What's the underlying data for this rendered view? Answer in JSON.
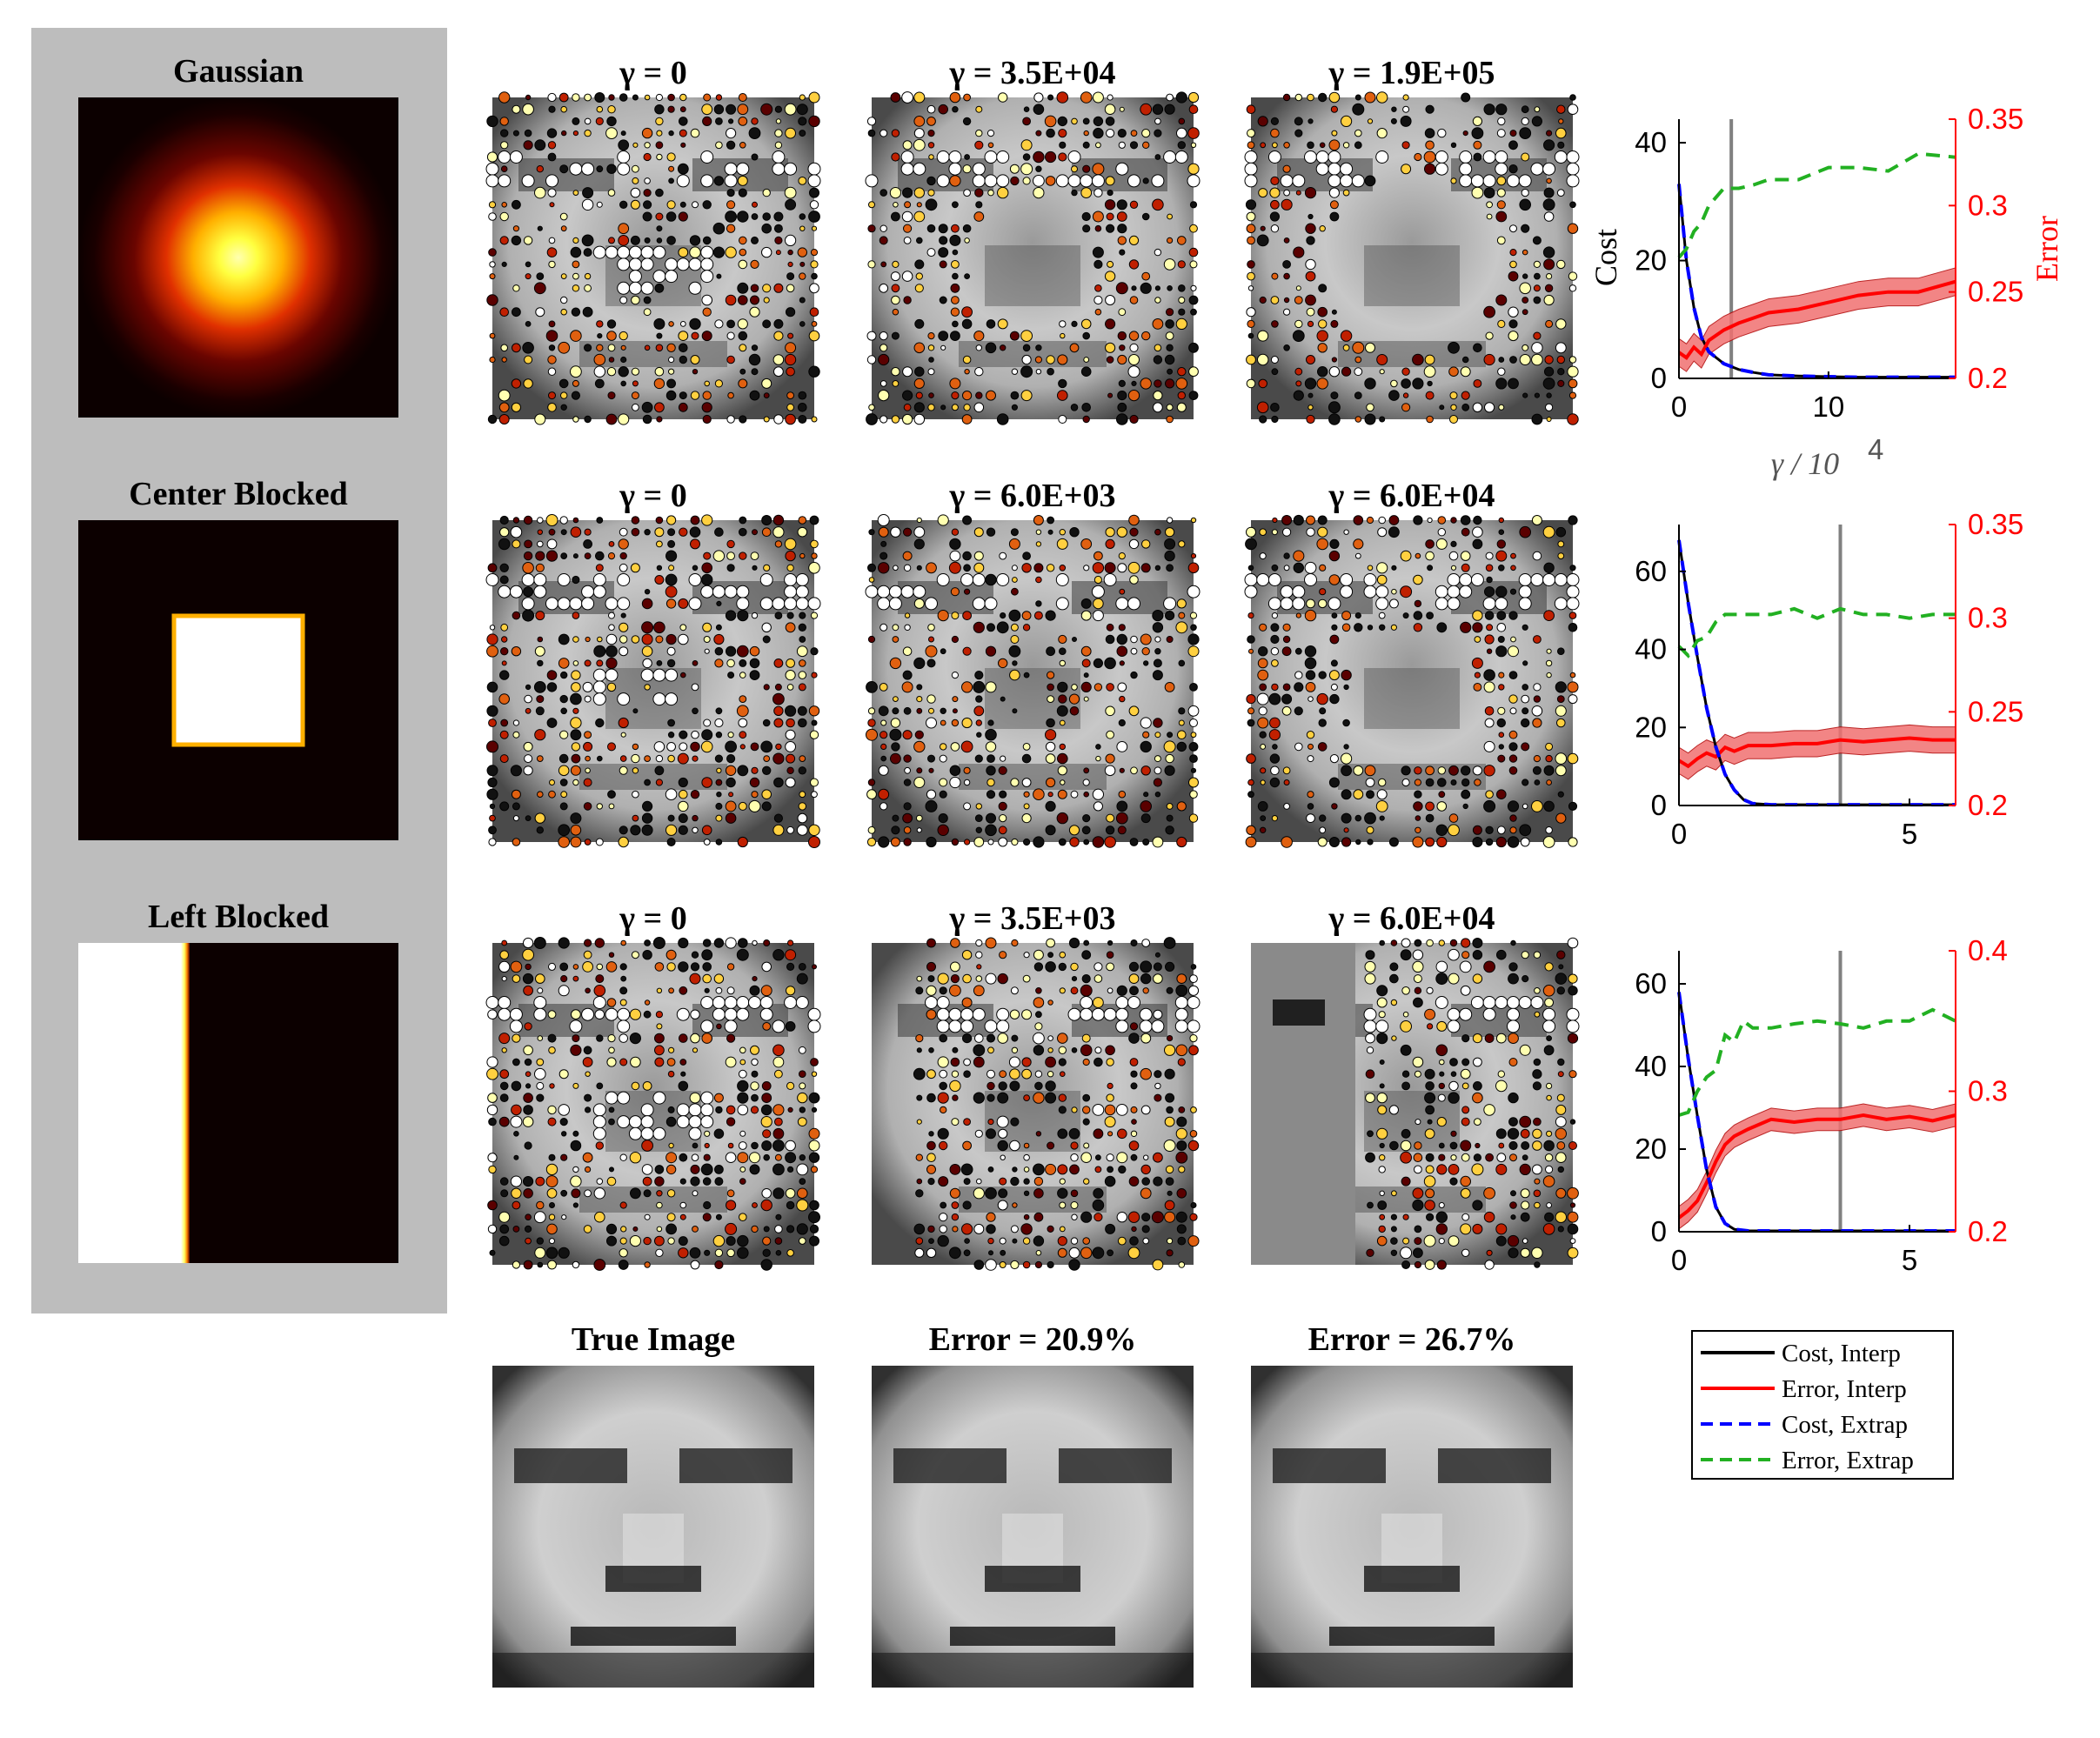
{
  "figure": {
    "masks": {
      "titles": [
        "Gaussian",
        "Center Blocked",
        "Left Blocked"
      ],
      "types": [
        "gaussian",
        "center",
        "left"
      ],
      "panel_background": "#bdbdbd"
    },
    "rows": [
      {
        "type": "gaussian",
        "titles": [
          "γ = 0",
          "γ = 3.5E+04",
          "γ = 1.9E+05"
        ]
      },
      {
        "type": "center",
        "titles": [
          "γ = 0",
          "γ = 6.0E+03",
          "γ = 6.0E+04"
        ]
      },
      {
        "type": "left",
        "titles": [
          "γ = 0",
          "γ = 3.5E+03",
          "γ = 6.0E+04"
        ]
      }
    ],
    "bottom_titles": [
      "True Image",
      "Error = 20.9%",
      "Error = 26.7%"
    ],
    "legend": [
      "Cost, Interp",
      "Error, Interp",
      "Cost, Extrap",
      "Error, Extrap"
    ],
    "colors": {
      "cost_interp": "#000000",
      "error_interp": "#ff0000",
      "cost_extrap": "#0000ff",
      "error_extrap": "#22b022",
      "vline": "#808080",
      "error_axis": "#ff0000"
    },
    "axis_labels": {
      "left": "Cost",
      "right": "Error",
      "x": "γ / 10",
      "x_exp": "4"
    }
  },
  "chart_data": [
    {
      "type": "line",
      "xlim": [
        0,
        18.5
      ],
      "xticks": [
        0,
        10
      ],
      "ylim_left": [
        0,
        44
      ],
      "yticks_left": [
        0,
        20,
        40
      ],
      "ylim_right": [
        0.2,
        0.35
      ],
      "yticks_right": [
        "0.2",
        "0.25",
        "0.3",
        "0.35"
      ],
      "vline_x": 3.5,
      "series": [
        {
          "name": "Cost, Interp",
          "axis": "left",
          "x": [
            0,
            0.5,
            1,
            1.5,
            2,
            3,
            4,
            5,
            6,
            8,
            10,
            12,
            14,
            16,
            18.5
          ],
          "y": [
            33,
            20,
            12,
            7,
            4.5,
            2.5,
            1.5,
            1,
            0.6,
            0.4,
            0.3,
            0.2,
            0.2,
            0.2,
            0.2
          ]
        },
        {
          "name": "Error, Interp",
          "axis": "right",
          "x": [
            0,
            0.5,
            1,
            1.5,
            2,
            3,
            4,
            5,
            6,
            8,
            10,
            12,
            14,
            16,
            18.5
          ],
          "y": [
            0.215,
            0.212,
            0.218,
            0.214,
            0.222,
            0.228,
            0.232,
            0.235,
            0.238,
            0.24,
            0.244,
            0.248,
            0.25,
            0.25,
            0.256
          ],
          "band": 0.008
        },
        {
          "name": "Cost, Extrap",
          "axis": "left",
          "x": [
            0,
            0.5,
            1,
            1.5,
            2,
            3,
            4,
            5,
            6,
            8,
            10,
            12,
            14,
            16,
            18.5
          ],
          "y": [
            33,
            20,
            12,
            7,
            4.5,
            2.5,
            1.5,
            1,
            0.6,
            0.4,
            0.3,
            0.2,
            0.2,
            0.2,
            0.2
          ]
        },
        {
          "name": "Error, Extrap",
          "axis": "right",
          "x": [
            0,
            0.5,
            1,
            1.5,
            2,
            3,
            4,
            5,
            6,
            8,
            10,
            12,
            14,
            16,
            18.5
          ],
          "y": [
            0.27,
            0.275,
            0.285,
            0.29,
            0.3,
            0.31,
            0.31,
            0.312,
            0.315,
            0.315,
            0.322,
            0.322,
            0.32,
            0.33,
            0.328
          ]
        }
      ]
    },
    {
      "type": "line",
      "xlim": [
        0,
        6
      ],
      "xticks": [
        0,
        5
      ],
      "ylim_left": [
        0,
        72
      ],
      "yticks_left": [
        0,
        20,
        40,
        60
      ],
      "ylim_right": [
        0.2,
        0.35
      ],
      "yticks_right": [
        "0.2",
        "0.25",
        "0.3",
        "0.35"
      ],
      "vline_x": 3.5,
      "series": [
        {
          "name": "Cost, Interp",
          "axis": "left",
          "x": [
            0,
            0.2,
            0.4,
            0.6,
            0.8,
            1,
            1.2,
            1.4,
            1.6,
            2,
            2.5,
            3,
            3.5,
            4,
            4.5,
            5,
            5.5,
            6
          ],
          "y": [
            68,
            52,
            38,
            25,
            15,
            8,
            4,
            1.5,
            0.5,
            0.2,
            0.2,
            0.2,
            0.2,
            0.2,
            0.2,
            0.2,
            0.2,
            0.2
          ]
        },
        {
          "name": "Error, Interp",
          "axis": "right",
          "x": [
            0,
            0.2,
            0.4,
            0.6,
            0.8,
            1,
            1.2,
            1.5,
            2,
            2.5,
            3,
            3.5,
            4,
            4.5,
            5,
            5.5,
            6
          ],
          "y": [
            0.224,
            0.221,
            0.225,
            0.228,
            0.226,
            0.231,
            0.229,
            0.232,
            0.232,
            0.233,
            0.233,
            0.235,
            0.234,
            0.235,
            0.236,
            0.235,
            0.235
          ],
          "band": 0.007
        },
        {
          "name": "Cost, Extrap",
          "axis": "left",
          "x": [
            0,
            0.2,
            0.4,
            0.6,
            0.8,
            1,
            1.2,
            1.4,
            1.6,
            2,
            2.5,
            3,
            3.5,
            4,
            4.5,
            5,
            5.5,
            6
          ],
          "y": [
            68,
            52,
            38,
            25,
            15,
            8,
            4,
            1.5,
            0.5,
            0.2,
            0.2,
            0.2,
            0.2,
            0.2,
            0.2,
            0.2,
            0.2,
            0.2
          ]
        },
        {
          "name": "Error, Extrap",
          "axis": "right",
          "x": [
            0,
            0.2,
            0.4,
            0.6,
            0.8,
            1,
            1.5,
            2,
            2.5,
            3,
            3.5,
            4,
            4.5,
            5,
            5.5,
            6
          ],
          "y": [
            0.285,
            0.28,
            0.288,
            0.29,
            0.298,
            0.302,
            0.302,
            0.302,
            0.305,
            0.3,
            0.305,
            0.302,
            0.302,
            0.3,
            0.302,
            0.302
          ]
        }
      ]
    },
    {
      "type": "line",
      "xlim": [
        0,
        6
      ],
      "xticks": [
        0,
        5
      ],
      "ylim_left": [
        0,
        68
      ],
      "yticks_left": [
        0,
        20,
        40,
        60
      ],
      "ylim_right": [
        0.2,
        0.4
      ],
      "yticks_right": [
        "0.2",
        "0.3",
        "0.4"
      ],
      "vline_x": 3.5,
      "series": [
        {
          "name": "Cost, Interp",
          "axis": "left",
          "x": [
            0,
            0.2,
            0.4,
            0.6,
            0.8,
            1,
            1.2,
            1.5,
            2,
            2.5,
            3,
            3.5,
            4,
            4.5,
            5,
            5.5,
            6
          ],
          "y": [
            58,
            42,
            28,
            15,
            6,
            2,
            0.6,
            0.2,
            0.2,
            0.2,
            0.2,
            0.2,
            0.2,
            0.2,
            0.2,
            0.2,
            0.2
          ]
        },
        {
          "name": "Error, Interp",
          "axis": "right",
          "x": [
            0,
            0.2,
            0.4,
            0.6,
            0.8,
            1,
            1.2,
            1.5,
            2,
            2.5,
            3,
            3.5,
            4,
            4.5,
            5,
            5.5,
            6
          ],
          "y": [
            0.21,
            0.215,
            0.222,
            0.235,
            0.25,
            0.262,
            0.268,
            0.273,
            0.28,
            0.278,
            0.28,
            0.28,
            0.283,
            0.28,
            0.282,
            0.279,
            0.283
          ],
          "band": 0.008
        },
        {
          "name": "Cost, Extrap",
          "axis": "left",
          "x": [
            0,
            0.2,
            0.4,
            0.6,
            0.8,
            1,
            1.2,
            1.5,
            2,
            2.5,
            3,
            3.5,
            4,
            4.5,
            5,
            5.5,
            6
          ],
          "y": [
            58,
            42,
            28,
            15,
            6,
            2,
            0.6,
            0.2,
            0.2,
            0.2,
            0.2,
            0.2,
            0.2,
            0.2,
            0.2,
            0.2,
            0.2
          ]
        },
        {
          "name": "Error, Extrap",
          "axis": "right",
          "x": [
            0,
            0.2,
            0.4,
            0.6,
            0.8,
            1,
            1.2,
            1.4,
            1.6,
            2,
            2.5,
            3,
            3.5,
            4,
            4.5,
            5,
            5.5,
            6
          ],
          "y": [
            0.283,
            0.285,
            0.3,
            0.31,
            0.315,
            0.34,
            0.335,
            0.35,
            0.345,
            0.345,
            0.348,
            0.35,
            0.348,
            0.345,
            0.35,
            0.35,
            0.358,
            0.35
          ]
        }
      ]
    }
  ]
}
